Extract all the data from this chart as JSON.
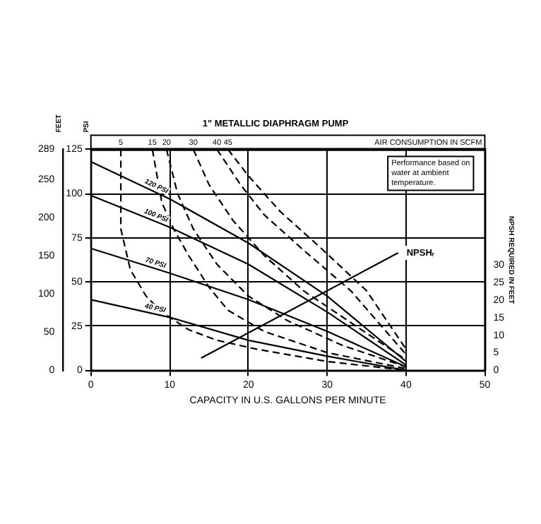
{
  "chart_data": {
    "type": "line",
    "title": "1\" METALLIC DIAPHRAGM PUMP",
    "xlabel": "CAPACITY IN U.S. GALLONS PER MINUTE",
    "ylabel": "PSI",
    "y3label": "FEET",
    "y2label": "NPSH REQUIRED IN FEET",
    "xlim": [
      0,
      50
    ],
    "xticks": [
      0,
      10,
      20,
      30,
      40,
      50
    ],
    "ylim": [
      0,
      125
    ],
    "yticks": [
      0,
      25,
      50,
      75,
      100,
      125
    ],
    "y3lim": [
      0,
      289
    ],
    "y3ticks": [
      0,
      50,
      100,
      150,
      200,
      250,
      289
    ],
    "y2lim": [
      0,
      63
    ],
    "y2ticks": [
      0,
      5,
      10,
      15,
      20,
      25,
      30
    ],
    "grid": true,
    "legend": false,
    "marker": "none",
    "annotations": [
      "AIR CONSUMPTION IN SCFM",
      "Performance based on water at ambient temperature."
    ],
    "series": [
      {
        "name": "120 PSI",
        "color": "#000000",
        "line_style": "solid",
        "x": [
          0,
          10,
          20,
          30,
          40
        ],
        "values": [
          118,
          97,
          72,
          42,
          5
        ]
      },
      {
        "name": "100 PSI",
        "color": "#000000",
        "line_style": "solid",
        "x": [
          0,
          10,
          20,
          30,
          40
        ],
        "values": [
          99,
          81,
          60,
          33,
          3
        ]
      },
      {
        "name": "70 PSI",
        "color": "#000000",
        "line_style": "solid",
        "x": [
          0,
          10,
          20,
          30,
          40
        ],
        "values": [
          69,
          55,
          40,
          22,
          2
        ]
      },
      {
        "name": "40 PSI",
        "color": "#000000",
        "line_style": "solid",
        "x": [
          0,
          10,
          20,
          30,
          40
        ],
        "values": [
          40,
          30,
          17,
          8,
          0
        ]
      },
      {
        "name": "5",
        "color": "#000000",
        "line_style": "dashed",
        "x": [
          3.8,
          3.8,
          5,
          7,
          9,
          12.4,
          16,
          21,
          30,
          40
        ],
        "values": [
          125,
          80,
          57,
          42,
          33,
          23,
          17,
          12,
          5,
          0
        ]
      },
      {
        "name": "15",
        "color": "#000000",
        "line_style": "dashed",
        "x": [
          7.8,
          9,
          10.5,
          12.4,
          15,
          17.4,
          22,
          30,
          40
        ],
        "values": [
          125,
          95,
          80,
          65,
          47,
          34,
          22,
          10,
          1
        ]
      },
      {
        "name": "20",
        "color": "#000000",
        "line_style": "dashed",
        "x": [
          9.6,
          11,
          13,
          16,
          20,
          25,
          32,
          40
        ],
        "values": [
          125,
          100,
          80,
          60,
          42,
          28,
          14,
          2
        ]
      },
      {
        "name": "30",
        "color": "#000000",
        "line_style": "dashed",
        "x": [
          13,
          15,
          18,
          22,
          27,
          33,
          40
        ],
        "values": [
          125,
          105,
          85,
          65,
          45,
          27,
          6
        ]
      },
      {
        "name": "40",
        "color": "#000000",
        "line_style": "dashed",
        "x": [
          16,
          19,
          22,
          27,
          33,
          40
        ],
        "values": [
          125,
          105,
          88,
          68,
          45,
          9
        ]
      },
      {
        "name": "45",
        "color": "#000000",
        "line_style": "dashed",
        "x": [
          17.4,
          20,
          24,
          29,
          35,
          40
        ],
        "values": [
          125,
          110,
          90,
          70,
          45,
          12
        ]
      },
      {
        "name": "NPSHᵣ",
        "color": "#000000",
        "line_style": "solid",
        "axis": "y2",
        "x": [
          14,
          39
        ],
        "values": [
          3.5,
          33.5
        ]
      }
    ]
  }
}
